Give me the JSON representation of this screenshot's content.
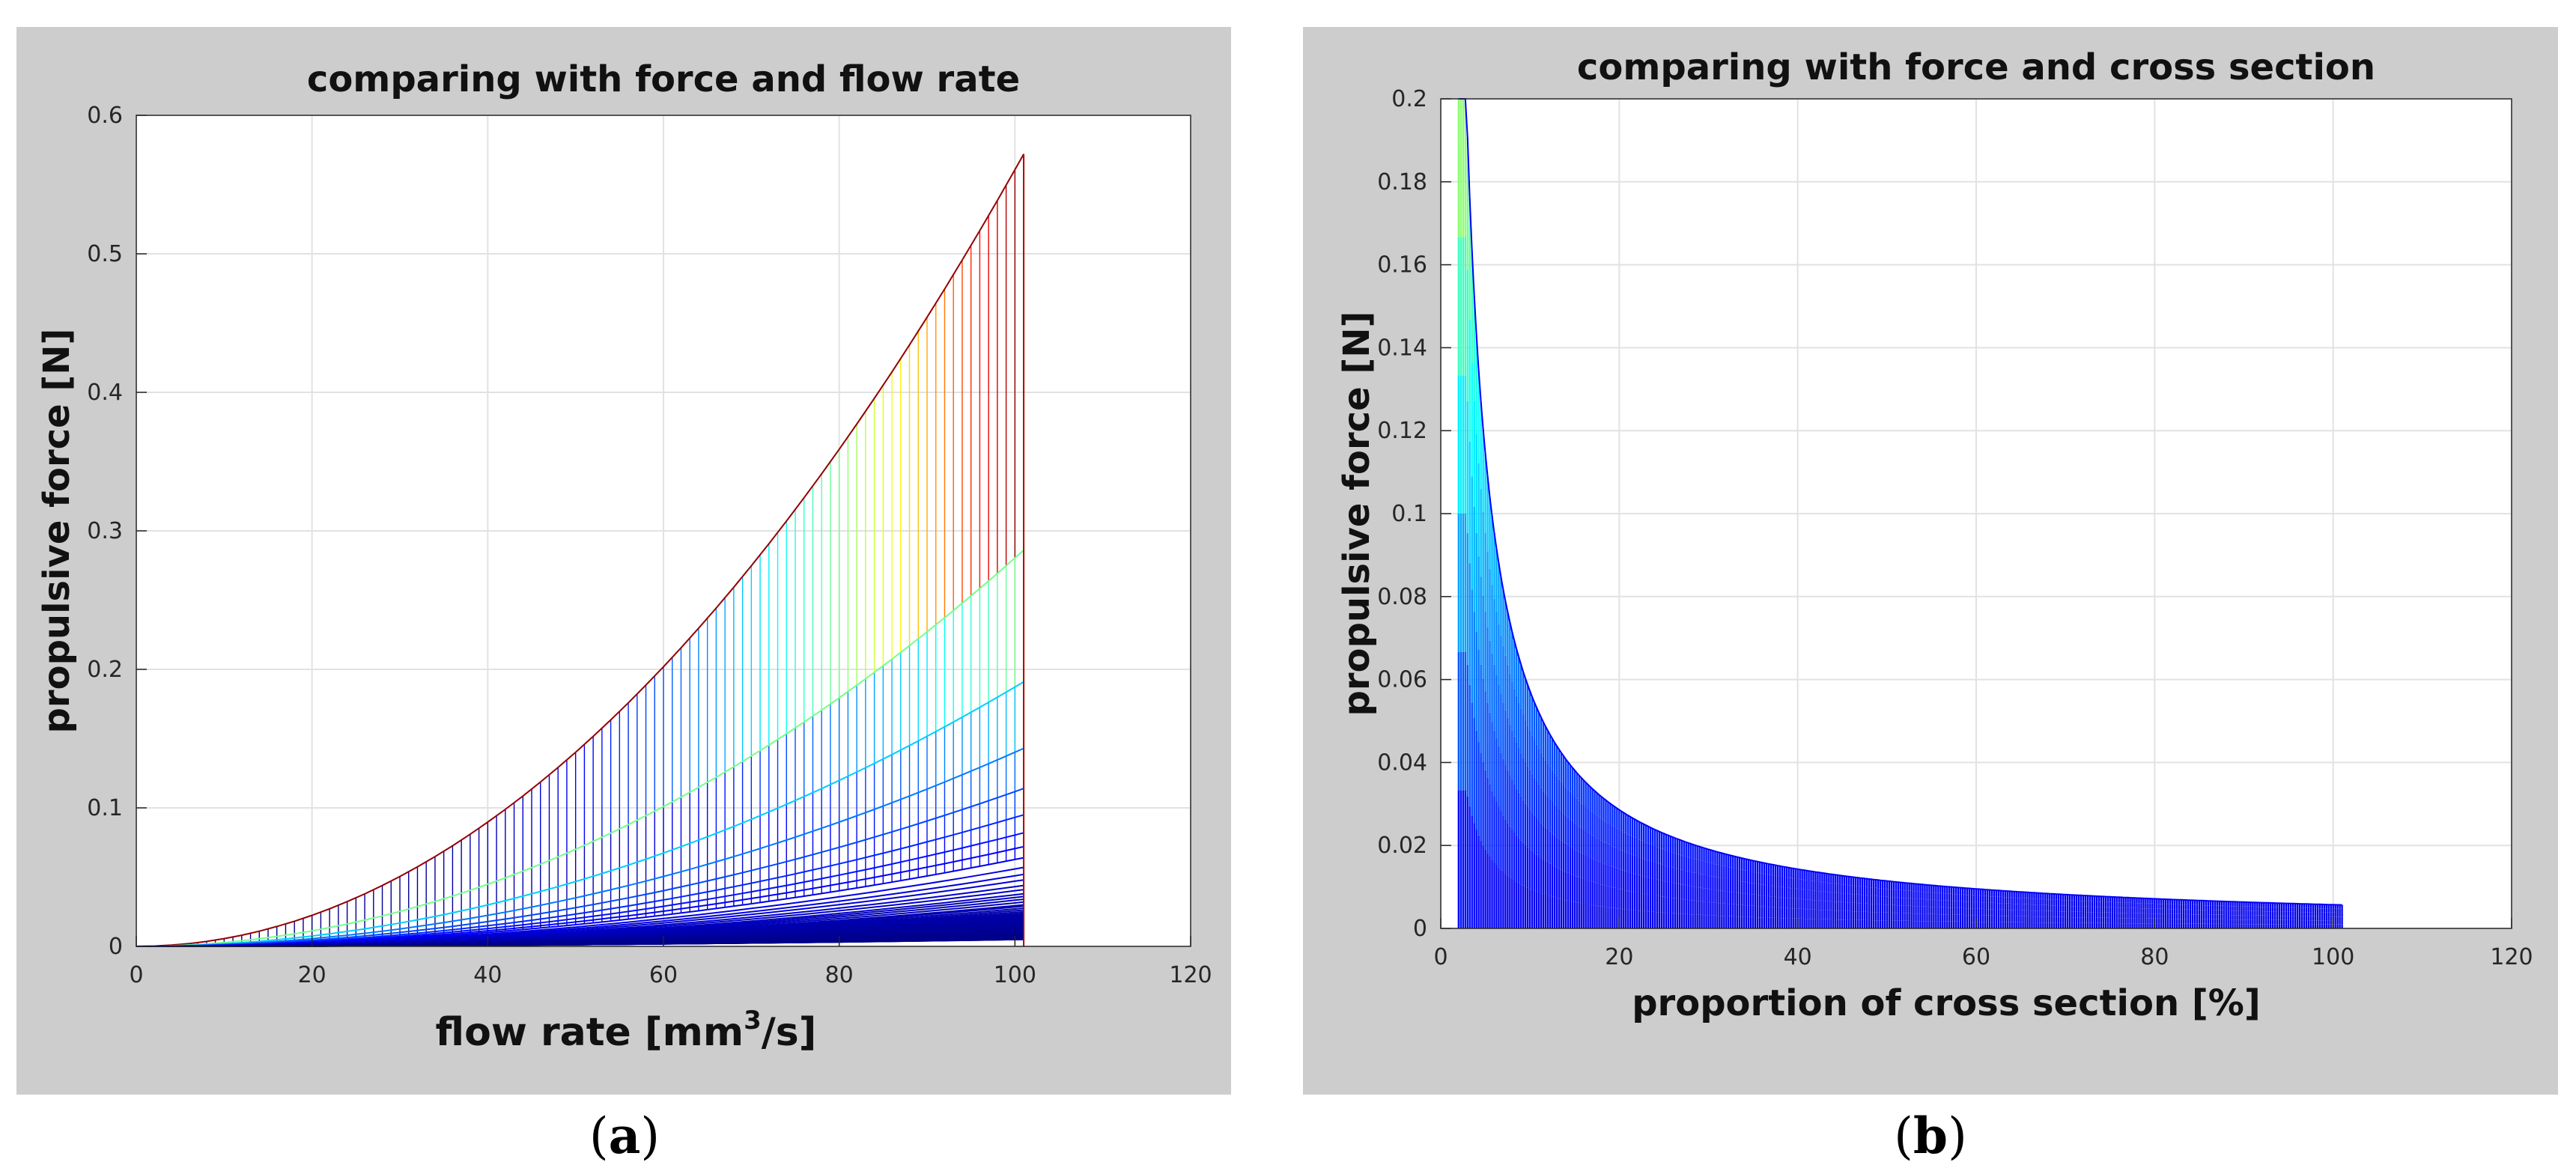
{
  "chart_data": [
    {
      "type": "line",
      "panel_label": "a",
      "title": "comparing with force and flow rate",
      "xlabel_prefix": "flow rate [mm",
      "xlabel_sup": "3",
      "xlabel_suffix": "/s]",
      "ylabel": "propulsive force [N]",
      "xlim": [
        0,
        120
      ],
      "ylim": [
        0,
        0.6
      ],
      "xticks": [
        "0",
        "20",
        "40",
        "60",
        "80",
        "100",
        "120"
      ],
      "yticks": [
        "0",
        "0.1",
        "0.2",
        "0.3",
        "0.4",
        "0.5",
        "0.6"
      ],
      "grid": true,
      "colormap": "jet",
      "series_description": "F = k * Q^2 curves for many cross-section proportions, each drawn with vertical stems",
      "x_range": [
        0,
        101
      ],
      "curve_peaks_at_x101": [
        0.572,
        0.286,
        0.191,
        0.143,
        0.114,
        0.095,
        0.082,
        0.072,
        0.064,
        0.057,
        0.052,
        0.048,
        0.044,
        0.041,
        0.038,
        0.036,
        0.034,
        0.032,
        0.03,
        0.029
      ]
    },
    {
      "type": "area",
      "panel_label": "b",
      "title": "comparing with force and cross section",
      "xlabel": "proportion of cross section  [%]",
      "ylabel": "propulsive force [N]",
      "xlim": [
        0,
        120
      ],
      "ylim": [
        0,
        0.2
      ],
      "xticks": [
        "0",
        "20",
        "40",
        "60",
        "80",
        "100",
        "120"
      ],
      "yticks": [
        "0",
        "0.02",
        "0.04",
        "0.06",
        "0.08",
        "0.1",
        "0.12",
        "0.14",
        "0.16",
        "0.18",
        "0.2"
      ],
      "grid": true,
      "colormap": "jet",
      "series_description": "F = 0.572 / x filled stems from x=2 to x=101",
      "x_range": [
        2,
        101
      ],
      "numerator": 0.572
    }
  ],
  "captions": {
    "a": "a",
    "b": "b"
  }
}
